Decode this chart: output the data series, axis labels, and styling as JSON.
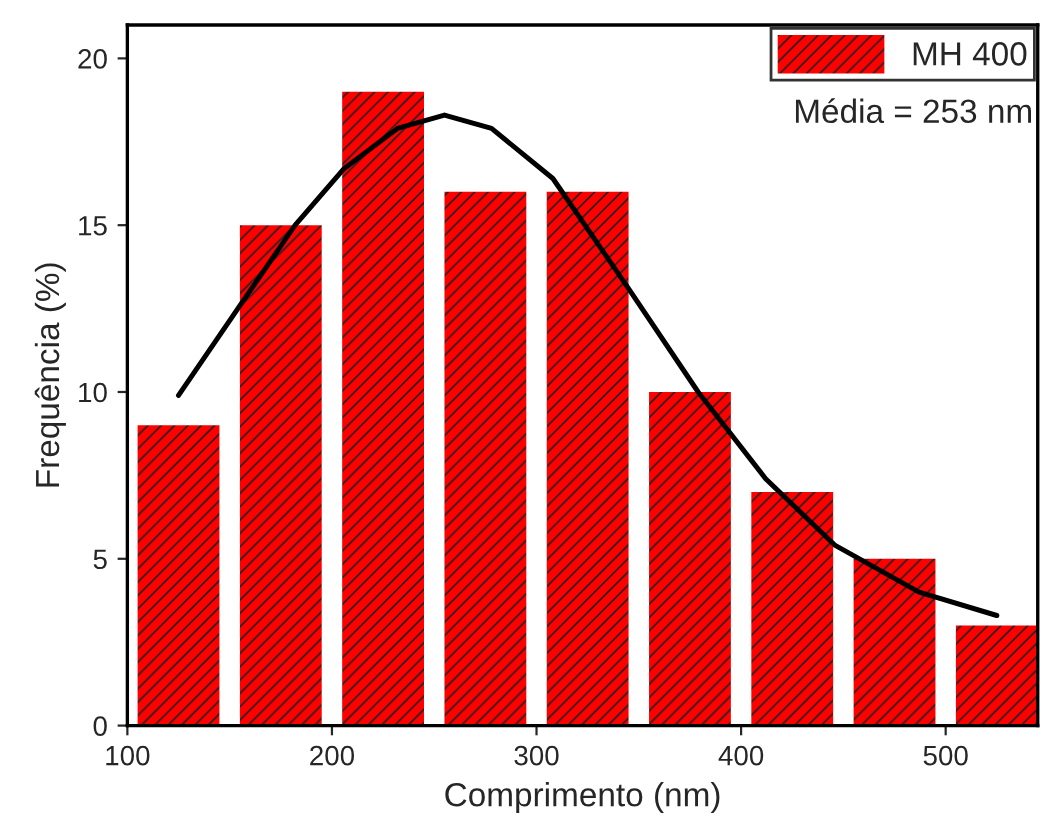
{
  "chart_data": {
    "type": "bar",
    "xlabel": "Comprimento (nm)",
    "ylabel": "Frequência (%)",
    "series": [
      {
        "name": "MH 400",
        "color": "#ff0000",
        "x": [
          125,
          175,
          225,
          275,
          325,
          375,
          425,
          475,
          525
        ],
        "values": [
          9,
          15,
          19,
          16,
          16,
          10,
          7,
          5,
          3
        ]
      },
      {
        "type": "line",
        "color": "#000000",
        "x": [
          125,
          154,
          182,
          206,
          232,
          255,
          278,
          308,
          345,
          379,
          412,
          446,
          487,
          525
        ],
        "values": [
          9.9,
          12.5,
          15,
          16.7,
          17.9,
          18.3,
          17.9,
          16.4,
          13.1,
          10,
          7.4,
          5.4,
          4,
          3.3
        ]
      }
    ],
    "annotations": [
      "Média = 253 nm"
    ],
    "xlim": [
      100,
      545
    ],
    "ylim": [
      0,
      21
    ],
    "xticks": [
      100,
      200,
      300,
      400,
      500
    ],
    "yticks": [
      0,
      5,
      10,
      15,
      20
    ],
    "grid": false,
    "legend": "top right"
  }
}
